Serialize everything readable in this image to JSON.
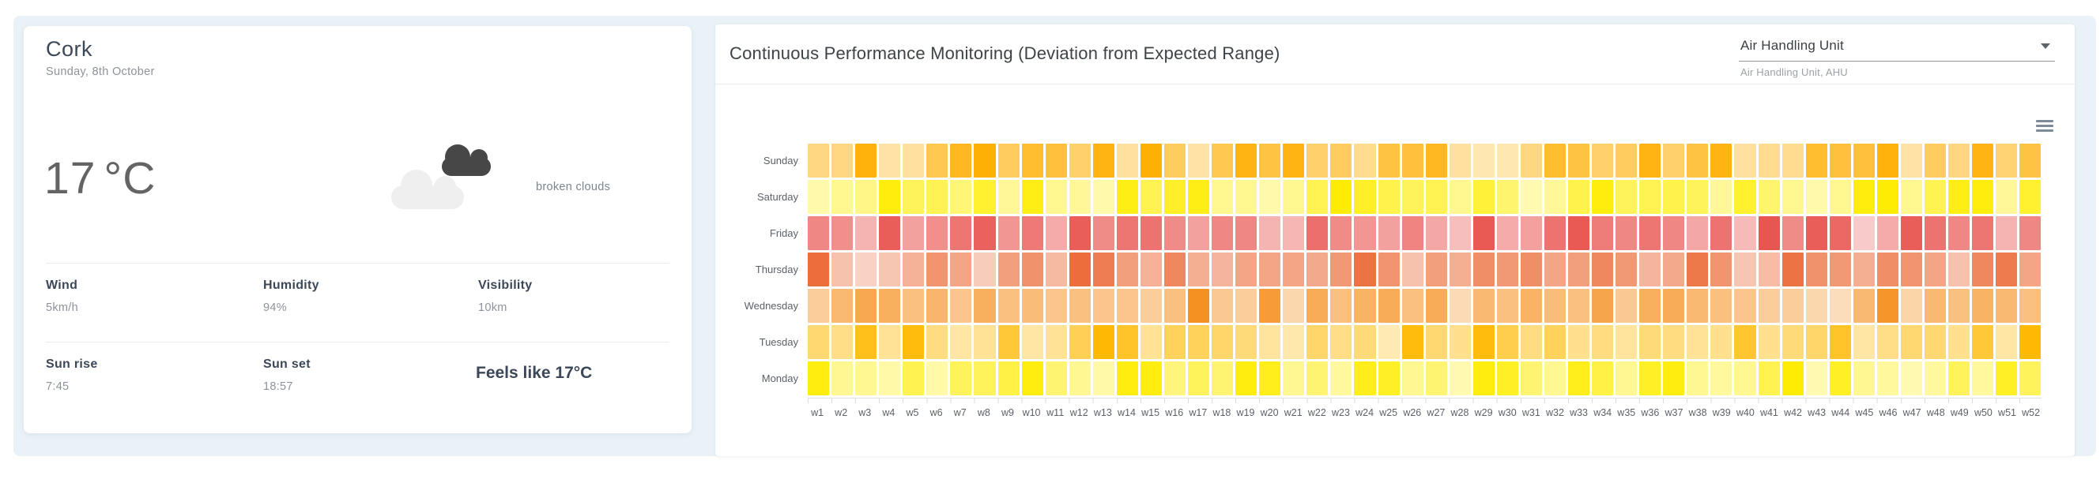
{
  "weather": {
    "city": "Cork",
    "date": "Sunday, 8th October",
    "temperature": "17",
    "temperature_unit": "°C",
    "condition": "broken clouds",
    "stats": [
      {
        "label": "Wind",
        "value": "5km/h"
      },
      {
        "label": "Humidity",
        "value": "94%"
      },
      {
        "label": "Visibility",
        "value": "10km"
      }
    ],
    "sun": [
      {
        "label": "Sun rise",
        "value": "7:45"
      },
      {
        "label": "Sun set",
        "value": "18:57"
      }
    ],
    "feels_like": "Feels like 17°C"
  },
  "chart": {
    "title": "Continuous Performance Monitoring (Deviation from Expected Range)",
    "dropdown": {
      "value": "Air Handling Unit",
      "helper": "Air Handling Unit, AHU"
    },
    "menu_icon": "hamburger-menu-icon"
  },
  "chart_data": {
    "type": "heatmap",
    "title": "Continuous Performance Monitoring (Deviation from Expected Range)",
    "x_categories": [
      "w1",
      "w2",
      "w3",
      "w4",
      "w5",
      "w6",
      "w7",
      "w8",
      "w9",
      "w10",
      "w11",
      "w12",
      "w13",
      "w14",
      "w15",
      "w16",
      "w17",
      "w18",
      "w19",
      "w20",
      "w21",
      "w22",
      "w23",
      "w24",
      "w25",
      "w26",
      "w27",
      "w28",
      "w29",
      "w30",
      "w31",
      "w32",
      "w33",
      "w34",
      "w35",
      "w36",
      "w37",
      "w38",
      "w39",
      "w40",
      "w41",
      "w42",
      "w43",
      "w44",
      "w45",
      "w46",
      "w47",
      "w48",
      "w49",
      "w50",
      "w51",
      "w52"
    ],
    "value_scale": "deviation score 0-100, estimated from cell color intensity (no numeric labels shown)",
    "legend": "none",
    "grid": "off",
    "rows": [
      {
        "name": "Sunday",
        "color": "#FFAE00",
        "values": [
          41,
          41,
          58,
          36,
          37,
          48,
          55,
          59,
          46,
          53,
          51,
          44,
          57,
          37,
          59,
          46,
          36,
          48,
          57,
          50,
          57,
          44,
          46,
          39,
          50,
          51,
          55,
          37,
          34,
          34,
          41,
          53,
          50,
          44,
          46,
          57,
          44,
          50,
          57,
          37,
          39,
          39,
          53,
          51,
          51,
          58,
          36,
          46,
          41,
          57,
          43,
          50
        ]
      },
      {
        "name": "Saturday",
        "color": "#FFEC00",
        "values": [
          13,
          16,
          17,
          31,
          22,
          23,
          19,
          27,
          15,
          30,
          16,
          15,
          13,
          30,
          23,
          28,
          30,
          16,
          16,
          13,
          16,
          23,
          32,
          28,
          24,
          22,
          23,
          16,
          26,
          20,
          12,
          15,
          24,
          31,
          22,
          23,
          24,
          22,
          15,
          27,
          20,
          16,
          13,
          16,
          31,
          32,
          16,
          23,
          30,
          31,
          15,
          27
        ]
      },
      {
        "name": "Friday",
        "color": "#E8534E",
        "values": [
          73,
          71,
          61,
          85,
          66,
          71,
          78,
          84,
          69,
          77,
          63,
          85,
          72,
          78,
          79,
          72,
          66,
          73,
          73,
          61,
          60,
          80,
          72,
          69,
          66,
          74,
          64,
          58,
          86,
          63,
          66,
          79,
          86,
          76,
          73,
          78,
          73,
          64,
          79,
          59,
          87,
          72,
          85,
          82,
          54,
          63,
          85,
          79,
          73,
          78,
          61,
          73
        ]
      },
      {
        "name": "Thursday",
        "color": "#EB6B38",
        "values": [
          75,
          49,
          44,
          48,
          54,
          63,
          58,
          46,
          60,
          64,
          52,
          75,
          70,
          60,
          54,
          67,
          55,
          53,
          58,
          58,
          58,
          57,
          62,
          73,
          63,
          49,
          60,
          55,
          65,
          62,
          65,
          58,
          60,
          67,
          62,
          53,
          57,
          72,
          63,
          48,
          51,
          73,
          64,
          62,
          55,
          65,
          63,
          58,
          49,
          67,
          71,
          58
        ]
      },
      {
        "name": "Wednesday",
        "color": "#F58F1E",
        "values": [
          46,
          52,
          57,
          55,
          50,
          53,
          48,
          55,
          50,
          51,
          48,
          50,
          48,
          48,
          46,
          50,
          64,
          47,
          46,
          61,
          43,
          56,
          50,
          54,
          56,
          50,
          56,
          42,
          52,
          50,
          54,
          51,
          50,
          58,
          47,
          55,
          56,
          52,
          50,
          48,
          46,
          46,
          43,
          41,
          52,
          63,
          44,
          52,
          50,
          54,
          52,
          50
        ]
      },
      {
        "name": "Tuesday",
        "color": "#FFB900",
        "values": [
          38,
          35,
          50,
          33,
          52,
          36,
          31,
          33,
          46,
          31,
          33,
          42,
          53,
          48,
          33,
          41,
          41,
          39,
          37,
          32,
          30,
          39,
          35,
          37,
          29,
          52,
          38,
          34,
          52,
          43,
          36,
          41,
          34,
          36,
          32,
          37,
          36,
          33,
          34,
          47,
          34,
          37,
          39,
          48,
          31,
          35,
          38,
          38,
          34,
          46,
          31,
          53
        ]
      },
      {
        "name": "Monday",
        "color": "#FFEC00",
        "values": [
          25,
          13,
          13,
          11,
          19,
          11,
          18,
          18,
          20,
          25,
          16,
          13,
          11,
          25,
          25,
          15,
          18,
          16,
          25,
          24,
          13,
          16,
          12,
          24,
          23,
          13,
          16,
          10,
          25,
          23,
          16,
          13,
          24,
          20,
          13,
          23,
          25,
          13,
          12,
          13,
          19,
          26,
          10,
          23,
          13,
          12,
          10,
          12,
          18,
          12,
          23,
          18
        ]
      }
    ]
  },
  "colors": {
    "page_background": "#FFFFFF",
    "panel_background": "#E9F2F7",
    "card_background": "#FFFFFF",
    "heading_text": "#3C4858",
    "secondary_text": "#8C939B",
    "axis_label_text": "#5B6168",
    "divider": "#ECECEC",
    "hamburger_icon": "#7C8B97"
  }
}
